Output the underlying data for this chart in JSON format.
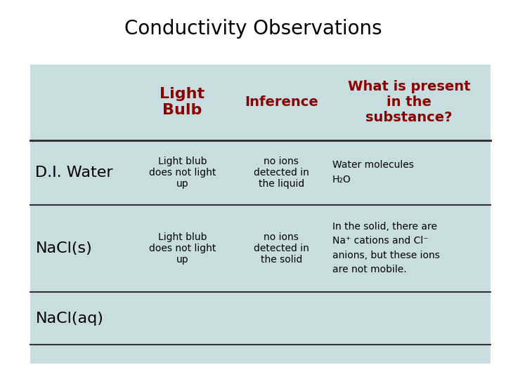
{
  "title": "Conductivity Observations",
  "title_fontsize": 20,
  "title_color": "#000000",
  "background_color": "#ffffff",
  "table_bg_color": "#c8dde0",
  "row_line_color": "#333333",
  "header_text_color": "#8b0000",
  "body_text_color": "#000000",
  "row_label_fontsize": 16,
  "header_fontsize": 16,
  "body_fontsize": 10,
  "rows": [
    {
      "label": "D.I. Water",
      "col1": "Light blub\ndoes not light\nup",
      "col2": "no ions\ndetected in\nthe liquid",
      "col3_lines": [
        "Water molecules",
        "H₂O"
      ]
    },
    {
      "label": "NaCl(s)",
      "col1": "Light blub\ndoes not light\nup",
      "col2": "no ions\ndetected in\nthe solid",
      "col3_lines": [
        "In the solid, there are",
        "Na⁺ cations and Cl⁻",
        "anions, but these ions",
        "are not mobile."
      ]
    },
    {
      "label": "NaCl(aq)",
      "col1": "",
      "col2": "",
      "col3_lines": []
    }
  ]
}
